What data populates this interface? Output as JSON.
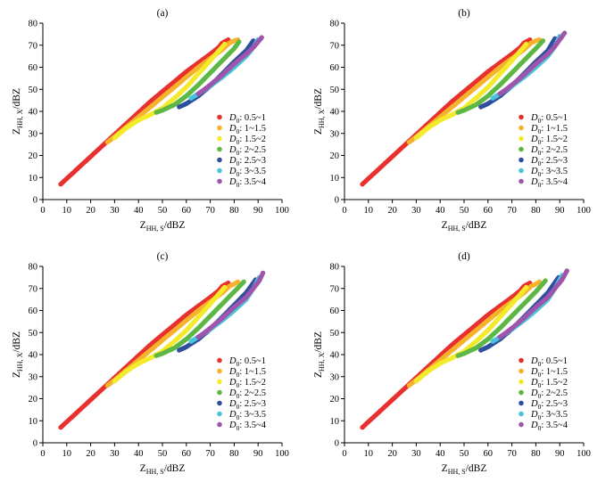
{
  "figure": {
    "legend_placement": "bottom-right",
    "grid": false
  },
  "legend": [
    {
      "symbol": "D",
      "subscript": "0",
      "text": ": 0.5~1",
      "color": "#e8302e"
    },
    {
      "symbol": "D",
      "subscript": "0",
      "text": ": 1~1.5",
      "color": "#f6b22b"
    },
    {
      "symbol": "D",
      "subscript": "0",
      "text": ": 1.5~2",
      "color": "#f3ea2b"
    },
    {
      "symbol": "D",
      "subscript": "0",
      "text": ": 2~2.5",
      "color": "#5cb744"
    },
    {
      "symbol": "D",
      "subscript": "0",
      "text": ": 2.5~3",
      "color": "#2e4f9e"
    },
    {
      "symbol": "D",
      "subscript": "0",
      "text": ": 3~3.5",
      "color": "#49c3d8"
    },
    {
      "symbol": "D",
      "subscript": "0",
      "text": ": 3.5~4",
      "color": "#a055ad"
    }
  ],
  "chart_data": [
    {
      "type": "scatter",
      "panel_label": "(a)",
      "xlabel": {
        "main": "Z",
        "sub": "HH, S",
        "unit": "/dBZ"
      },
      "ylabel": {
        "main": "Z",
        "sub": "HH, X",
        "unit": "/dBZ"
      },
      "xlim": [
        0,
        100
      ],
      "ylim": [
        0,
        80
      ],
      "xticks": [
        "0",
        "10",
        "20",
        "30",
        "40",
        "50",
        "60",
        "70",
        "80",
        "90",
        "100"
      ],
      "yticks": [
        "0",
        "10",
        "20",
        "30",
        "40",
        "50",
        "60",
        "70",
        "80"
      ],
      "series": [
        {
          "name": "D0: 0.5~1",
          "color": "#e8302e",
          "x": [
            7.5,
            10,
            15,
            20,
            25,
            30,
            35,
            40,
            45,
            50,
            55,
            60,
            65,
            70,
            73.5,
            75,
            77.5
          ],
          "y": [
            7,
            9.5,
            14.5,
            19.5,
            24.5,
            29.5,
            34.5,
            39.5,
            44.5,
            49,
            53.5,
            58,
            62,
            66,
            69,
            71,
            72.5
          ]
        },
        {
          "name": "D0: 1~1.5",
          "color": "#f6b22b",
          "x": [
            27,
            30,
            35,
            40,
            45,
            50,
            55,
            60,
            65,
            70,
            75,
            78,
            80,
            81.5
          ],
          "y": [
            26,
            28.5,
            33,
            37.5,
            42,
            46.5,
            51,
            55.5,
            60,
            64,
            68,
            71,
            72,
            72.5
          ]
        },
        {
          "name": "D0: 1.5~2",
          "color": "#f3ea2b",
          "x": [
            30,
            35,
            40,
            45,
            50,
            55,
            60,
            65,
            70,
            74,
            76
          ],
          "y": [
            28,
            32.5,
            36,
            38.5,
            41.5,
            46,
            51,
            57,
            63,
            68,
            70.5
          ]
        },
        {
          "name": "D0: 2~2.5",
          "color": "#5cb744",
          "x": [
            47.5,
            50,
            55,
            60,
            65,
            70,
            75,
            80,
            82
          ],
          "y": [
            39.5,
            40.5,
            43,
            47,
            52,
            57.5,
            63,
            68.5,
            71.5
          ]
        },
        {
          "name": "D0: 2.5~3",
          "color": "#2e4f9e",
          "x": [
            57,
            60,
            65,
            70,
            75,
            80,
            85,
            88
          ],
          "y": [
            42,
            43.5,
            47,
            51.5,
            57,
            62.5,
            67.5,
            72
          ]
        },
        {
          "name": "D0: 3~3.5",
          "color": "#49c3d8",
          "x": [
            62,
            65,
            70,
            75,
            80,
            85,
            88,
            90
          ],
          "y": [
            46,
            48,
            51.5,
            55.5,
            60,
            65,
            69,
            72.5
          ]
        },
        {
          "name": "D0: 3.5~4",
          "color": "#a055ad",
          "x": [
            65,
            67,
            70,
            75,
            80,
            85,
            88,
            90,
            91.5
          ],
          "y": [
            48,
            49.5,
            52,
            56.5,
            61.5,
            66,
            69,
            71.5,
            73.5
          ]
        }
      ]
    },
    {
      "type": "scatter",
      "panel_label": "(b)",
      "xlabel": {
        "main": "Z",
        "sub": "HH, S",
        "unit": "/dBZ"
      },
      "ylabel": {
        "main": "Z",
        "sub": "HH, X",
        "unit": "/dBZ"
      },
      "xlim": [
        0,
        100
      ],
      "ylim": [
        0,
        80
      ],
      "xticks": [
        "0",
        "10",
        "20",
        "30",
        "40",
        "50",
        "60",
        "70",
        "80",
        "90",
        "100"
      ],
      "yticks": [
        "0",
        "10",
        "20",
        "30",
        "40",
        "50",
        "60",
        "70",
        "80"
      ],
      "series": [
        {
          "name": "D0: 0.5~1",
          "color": "#e8302e",
          "x": [
            7.5,
            10,
            15,
            20,
            25,
            30,
            35,
            40,
            45,
            50,
            55,
            60,
            65,
            70,
            73.5,
            75,
            77.5
          ],
          "y": [
            7,
            9.5,
            14.5,
            19.5,
            24.5,
            29.5,
            34.5,
            39.5,
            44.5,
            49,
            53.5,
            58,
            62,
            66,
            69,
            71,
            72.5
          ]
        },
        {
          "name": "D0: 1~1.5",
          "color": "#f6b22b",
          "x": [
            27,
            30,
            35,
            40,
            45,
            50,
            55,
            60,
            65,
            70,
            75,
            78,
            80,
            81.5
          ],
          "y": [
            26,
            28.5,
            33,
            37.5,
            42,
            46.5,
            51,
            55.5,
            60,
            64,
            68,
            71,
            72,
            72.5
          ]
        },
        {
          "name": "D0: 1.5~2",
          "color": "#f3ea2b",
          "x": [
            30,
            35,
            40,
            45,
            50,
            55,
            60,
            65,
            70,
            74,
            76
          ],
          "y": [
            28,
            32.5,
            36,
            38.5,
            41.5,
            46,
            51,
            57,
            63,
            68,
            70.5
          ]
        },
        {
          "name": "D0: 2~2.5",
          "color": "#5cb744",
          "x": [
            47.5,
            50,
            55,
            60,
            65,
            70,
            75,
            80,
            83
          ],
          "y": [
            39.5,
            40.5,
            43,
            47,
            52,
            57.5,
            63,
            68.5,
            72
          ]
        },
        {
          "name": "D0: 2.5~3",
          "color": "#2e4f9e",
          "x": [
            57,
            60,
            65,
            70,
            75,
            80,
            85,
            88
          ],
          "y": [
            42,
            43.5,
            47,
            51.5,
            57,
            62.5,
            67.5,
            73
          ]
        },
        {
          "name": "D0: 3~3.5",
          "color": "#49c3d8",
          "x": [
            62,
            65,
            70,
            75,
            80,
            85,
            88,
            90
          ],
          "y": [
            46,
            48,
            51.5,
            55.5,
            60,
            65,
            69.5,
            74
          ]
        },
        {
          "name": "D0: 3.5~4",
          "color": "#a055ad",
          "x": [
            65,
            67,
            70,
            75,
            80,
            85,
            88,
            90,
            92
          ],
          "y": [
            48,
            49.5,
            52,
            56.5,
            61.5,
            66,
            69.5,
            72.5,
            75.5
          ]
        }
      ]
    },
    {
      "type": "scatter",
      "panel_label": "(c)",
      "xlabel": {
        "main": "Z",
        "sub": "HH, S",
        "unit": "/dBZ"
      },
      "ylabel": {
        "main": "Z",
        "sub": "HH, X",
        "unit": "/dBZ"
      },
      "xlim": [
        0,
        100
      ],
      "ylim": [
        0,
        80
      ],
      "xticks": [
        "0",
        "10",
        "20",
        "30",
        "40",
        "50",
        "60",
        "70",
        "80",
        "90",
        "100"
      ],
      "yticks": [
        "0",
        "10",
        "20",
        "30",
        "40",
        "50",
        "60",
        "70",
        "80"
      ],
      "series": [
        {
          "name": "D0: 0.5~1",
          "color": "#e8302e",
          "x": [
            7.5,
            10,
            15,
            20,
            25,
            30,
            35,
            40,
            45,
            50,
            55,
            60,
            65,
            70,
            73.5,
            75,
            77.5
          ],
          "y": [
            7,
            9.5,
            14.5,
            19.5,
            24.5,
            29.5,
            34.5,
            39.5,
            44.5,
            49,
            53.5,
            58,
            62,
            66,
            69,
            71,
            72.5
          ]
        },
        {
          "name": "D0: 1~1.5",
          "color": "#f6b22b",
          "x": [
            27,
            30,
            35,
            40,
            45,
            50,
            55,
            60,
            65,
            70,
            75,
            78,
            80,
            81.5
          ],
          "y": [
            26,
            28.5,
            33,
            37.5,
            42,
            46.5,
            51,
            55.5,
            60,
            64,
            68,
            71,
            72,
            73
          ]
        },
        {
          "name": "D0: 1.5~2",
          "color": "#f3ea2b",
          "x": [
            30,
            35,
            40,
            45,
            50,
            55,
            60,
            65,
            70,
            74,
            76
          ],
          "y": [
            28,
            32.5,
            36,
            38.5,
            41.5,
            46,
            51,
            57,
            63,
            68,
            70.5
          ]
        },
        {
          "name": "D0: 2~2.5",
          "color": "#5cb744",
          "x": [
            47.5,
            50,
            55,
            60,
            65,
            70,
            75,
            80,
            84
          ],
          "y": [
            39.5,
            40.5,
            43,
            47,
            52,
            57.5,
            63,
            68.5,
            73
          ]
        },
        {
          "name": "D0: 2.5~3",
          "color": "#2e4f9e",
          "x": [
            57,
            60,
            65,
            70,
            75,
            80,
            85,
            89
          ],
          "y": [
            42,
            43.5,
            47,
            51.5,
            57,
            62.5,
            68,
            74
          ]
        },
        {
          "name": "D0: 3~3.5",
          "color": "#49c3d8",
          "x": [
            62,
            65,
            70,
            75,
            80,
            85,
            88,
            90.5
          ],
          "y": [
            46,
            48,
            51.5,
            55.5,
            60,
            65,
            70,
            75
          ]
        },
        {
          "name": "D0: 3.5~4",
          "color": "#a055ad",
          "x": [
            65,
            67,
            70,
            75,
            80,
            85,
            88,
            90.5,
            92
          ],
          "y": [
            48,
            49.5,
            52,
            56.5,
            61.5,
            66,
            70,
            73.5,
            77
          ]
        }
      ]
    },
    {
      "type": "scatter",
      "panel_label": "(d)",
      "xlabel": {
        "main": "Z",
        "sub": "HH, S",
        "unit": "/dBZ"
      },
      "ylabel": {
        "main": "Z",
        "sub": "HH, X",
        "unit": "/dBZ"
      },
      "xlim": [
        0,
        100
      ],
      "ylim": [
        0,
        80
      ],
      "xticks": [
        "0",
        "10",
        "20",
        "30",
        "40",
        "50",
        "60",
        "70",
        "80",
        "90",
        "100"
      ],
      "yticks": [
        "0",
        "10",
        "20",
        "30",
        "40",
        "50",
        "60",
        "70",
        "80"
      ],
      "series": [
        {
          "name": "D0: 0.5~1",
          "color": "#e8302e",
          "x": [
            7.5,
            10,
            15,
            20,
            25,
            30,
            35,
            40,
            45,
            50,
            55,
            60,
            65,
            70,
            73.5,
            75,
            77.5
          ],
          "y": [
            7,
            9.5,
            14.5,
            19.5,
            24.5,
            29.5,
            34.5,
            39.5,
            44.5,
            49,
            53.5,
            58,
            62,
            66,
            69,
            71,
            72.5
          ]
        },
        {
          "name": "D0: 1~1.5",
          "color": "#f6b22b",
          "x": [
            27,
            30,
            35,
            40,
            45,
            50,
            55,
            60,
            65,
            70,
            75,
            78,
            80,
            81.5
          ],
          "y": [
            26,
            28.5,
            33,
            37.5,
            42,
            46.5,
            51,
            55.5,
            60,
            64,
            68,
            71,
            72,
            73
          ]
        },
        {
          "name": "D0: 1.5~2",
          "color": "#f3ea2b",
          "x": [
            30,
            35,
            40,
            45,
            50,
            55,
            60,
            65,
            70,
            74,
            76
          ],
          "y": [
            28,
            32.5,
            36,
            38.5,
            41.5,
            46,
            51,
            57,
            63,
            68,
            70.5
          ]
        },
        {
          "name": "D0: 2~2.5",
          "color": "#5cb744",
          "x": [
            47.5,
            50,
            55,
            60,
            65,
            70,
            75,
            80,
            84
          ],
          "y": [
            39.5,
            40.5,
            43,
            47,
            52,
            57.5,
            63,
            68.5,
            73.5
          ]
        },
        {
          "name": "D0: 2.5~3",
          "color": "#2e4f9e",
          "x": [
            57,
            60,
            65,
            70,
            75,
            80,
            85,
            89.5
          ],
          "y": [
            42,
            43.5,
            47,
            51.5,
            57,
            62.5,
            68,
            75
          ]
        },
        {
          "name": "D0: 3~3.5",
          "color": "#49c3d8",
          "x": [
            62,
            65,
            70,
            75,
            80,
            85,
            88,
            91
          ],
          "y": [
            46,
            48,
            51.5,
            55.5,
            60,
            65,
            70,
            76
          ]
        },
        {
          "name": "D0: 3.5~4",
          "color": "#a055ad",
          "x": [
            65,
            67,
            70,
            75,
            80,
            85,
            88,
            91,
            93
          ],
          "y": [
            48,
            49.5,
            52,
            56.5,
            61.5,
            66,
            70,
            74,
            78
          ]
        }
      ]
    }
  ]
}
